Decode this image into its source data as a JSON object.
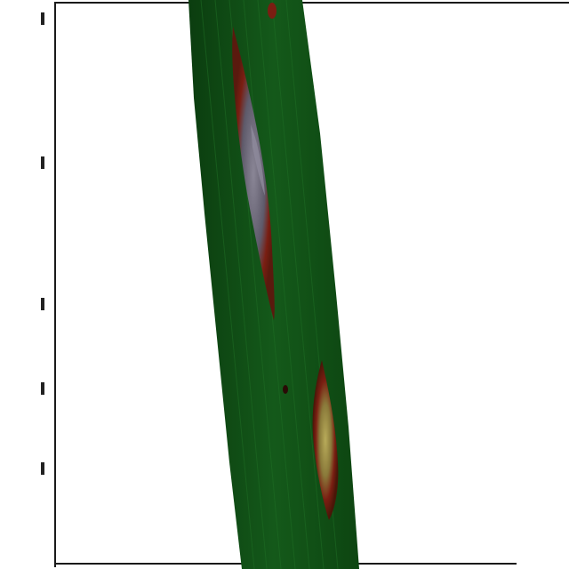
{
  "image": {
    "subject": "plant-leaf-with-lesions",
    "colors": {
      "background": "#ffffff",
      "frame": "#1a1a1a",
      "leaf_dark": "#0b3d0f",
      "leaf_mid": "#14591a",
      "leaf_light": "#1f6e25",
      "lesion_border": "#7a1e12",
      "lesion_center": "#6e6a78",
      "lesion_core": "#9a8f4a"
    }
  }
}
